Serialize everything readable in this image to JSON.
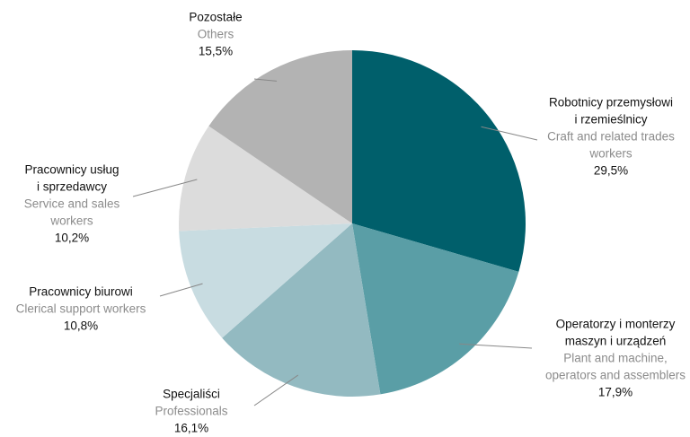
{
  "chart_data": {
    "type": "pie",
    "categories": [
      [
        "Robotnicy przemysłowi",
        "i rzemieślnicy"
      ],
      [
        "Operatorzy i monterzy",
        "maszyn i urządzeń"
      ],
      [
        "Specjaliści"
      ],
      [
        "Pracownicy biurowi"
      ],
      [
        "Pracownicy usług",
        "i sprzedawcy"
      ],
      [
        "Pozostałe"
      ]
    ],
    "translations": [
      [
        "Craft and related trades",
        "workers"
      ],
      [
        "Plant and machine,",
        "operators and assemblers"
      ],
      [
        "Professionals"
      ],
      [
        "Clerical support workers"
      ],
      [
        "Service and sales",
        "workers"
      ],
      [
        "Others"
      ]
    ],
    "values": [
      29.5,
      17.9,
      16.1,
      10.8,
      10.2,
      15.5
    ],
    "value_labels": [
      "29,5%",
      "17,9%",
      "16,1%",
      "10,8%",
      "10,2%",
      "15,5%"
    ],
    "colors": [
      "#005f6b",
      "#5a9ea6",
      "#93bac1",
      "#c8dce1",
      "#dcdcdc",
      "#b3b3b3"
    ]
  }
}
